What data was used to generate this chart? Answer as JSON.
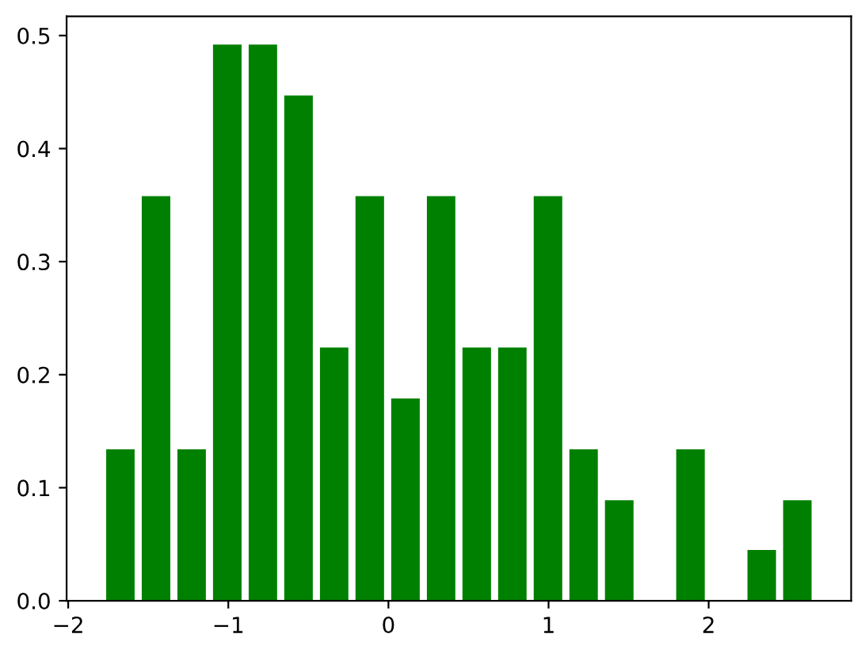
{
  "chart_data": {
    "type": "histogram",
    "color": "#008000",
    "bins": [
      -1.785,
      -1.563,
      -1.34,
      -1.118,
      -0.895,
      -0.673,
      -0.45,
      -0.228,
      -0.005,
      0.218,
      0.44,
      0.663,
      0.885,
      1.108,
      1.33,
      1.553,
      1.775,
      1.998,
      2.22,
      2.443,
      2.665
    ],
    "values": [
      0.134,
      0.358,
      0.134,
      0.492,
      0.492,
      0.447,
      0.224,
      0.358,
      0.179,
      0.358,
      0.224,
      0.224,
      0.358,
      0.134,
      0.089,
      0,
      0.134,
      0,
      0.045,
      0.089
    ],
    "xlim": [
      -2.01,
      2.89
    ],
    "ylim": [
      0,
      0.517
    ],
    "xticks": [
      {
        "value": -2,
        "label": "−2"
      },
      {
        "value": -1,
        "label": "−1"
      },
      0,
      1,
      2
    ],
    "yticks": [
      {
        "value": 0,
        "label": "0.0"
      },
      0.1,
      0.2,
      0.3,
      0.4,
      0.5
    ],
    "grid": false,
    "legend": false
  }
}
